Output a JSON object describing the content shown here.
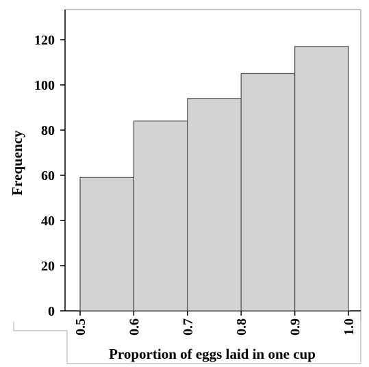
{
  "chart_data": {
    "type": "bar",
    "subtype": "histogram",
    "xlabel": "Proportion of eggs laid in one cup",
    "ylabel": "Frequency",
    "bins": [
      {
        "start": 0.5,
        "end": 0.6,
        "value": 59
      },
      {
        "start": 0.6,
        "end": 0.7,
        "value": 84
      },
      {
        "start": 0.7,
        "end": 0.8,
        "value": 94
      },
      {
        "start": 0.8,
        "end": 0.9,
        "value": 105
      },
      {
        "start": 0.9,
        "end": 1.0,
        "value": 117
      }
    ],
    "x_ticks": [
      "0.5",
      "0.6",
      "0.7",
      "0.8",
      "0.9",
      "1.0"
    ],
    "y_ticks": [
      "0",
      "20",
      "40",
      "60",
      "80",
      "100",
      "120"
    ],
    "ylim": [
      0,
      134
    ],
    "xlim": [
      0.5,
      1.0
    ],
    "grid": false,
    "bar_color": "#d3d3d3",
    "bar_edge_color": "#555555"
  }
}
